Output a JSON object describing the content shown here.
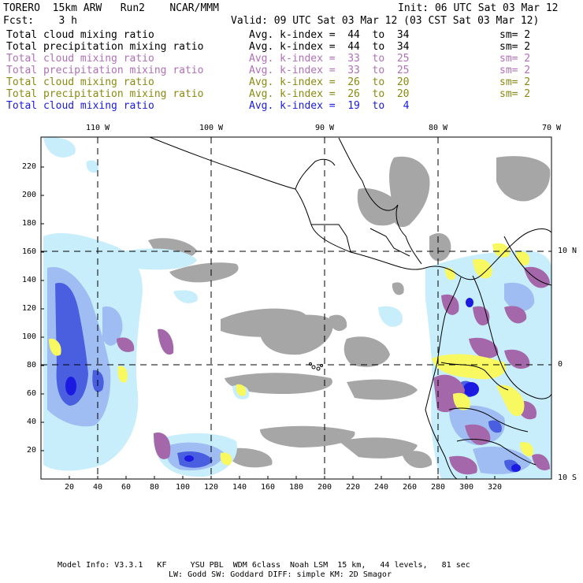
{
  "header": {
    "model": "TORERO  15km ARW   Run2    NCAR/MMM",
    "init": "Init: 06 UTC Sat 03 Mar 12",
    "fcst": "Fcst:    3 h",
    "valid": "Valid: 09 UTC Sat 03 Mar 12 (03 CST Sat 03 Mar 12)"
  },
  "legend_rows": [
    {
      "field": "Total cloud mixing ratio",
      "kindex": "Avg. k-index =  44  to  34",
      "sm": "sm= 2",
      "color": "#000000"
    },
    {
      "field": "Total precipitation mixing ratio",
      "kindex": "Avg. k-index =  44  to  34",
      "sm": "sm= 2",
      "color": "#000000"
    },
    {
      "field": "Total cloud mixing ratio",
      "kindex": "Avg. k-index =  33  to  25",
      "sm": "sm= 2",
      "color": "#b070b8"
    },
    {
      "field": "Total precipitation mixing ratio",
      "kindex": "Avg. k-index =  33  to  25",
      "sm": "sm= 2",
      "color": "#b070b8"
    },
    {
      "field": "Total cloud mixing ratio",
      "kindex": "Avg. k-index =  26  to  20",
      "sm": "sm= 2",
      "color": "#8a8a10"
    },
    {
      "field": "Total precipitation mixing ratio",
      "kindex": "Avg. k-index =  26  to  20",
      "sm": "sm= 2",
      "color": "#8a8a10"
    },
    {
      "field": "Total cloud mixing ratio",
      "kindex": "Avg. k-index =  19  to   4",
      "sm": "",
      "color": "#1a1ae0"
    }
  ],
  "top_lon_labels": [
    "110 W",
    "100 W",
    "90 W",
    "80 W",
    "70 W"
  ],
  "right_lat_labels": [
    "10 N",
    "0",
    "10 S"
  ],
  "left_ticks": [
    "220",
    "200",
    "180",
    "160",
    "140",
    "120",
    "100",
    "80",
    "60",
    "40",
    "20"
  ],
  "bottom_ticks": [
    "20",
    "40",
    "60",
    "80",
    "100",
    "120",
    "140",
    "160",
    "180",
    "200",
    "220",
    "240",
    "260",
    "280",
    "300",
    "320"
  ],
  "footer": {
    "line1": "Model Info: V3.3.1   KF     YSU PBL  WDM 6class  Noah LSM  15 km,   44 levels,   81 sec",
    "line2": "LW: Godd SW: Goddard DIFF: simple KM: 2D Smagor"
  },
  "colors": {
    "gray_cloud": "#a6a6a6",
    "light_blue": "#c8eefc",
    "mid_blue": "#9fbdf2",
    "blue": "#4a5fe0",
    "deep_blue": "#1a1ae0",
    "purple": "#a468aa",
    "yellow": "#f8f860"
  }
}
